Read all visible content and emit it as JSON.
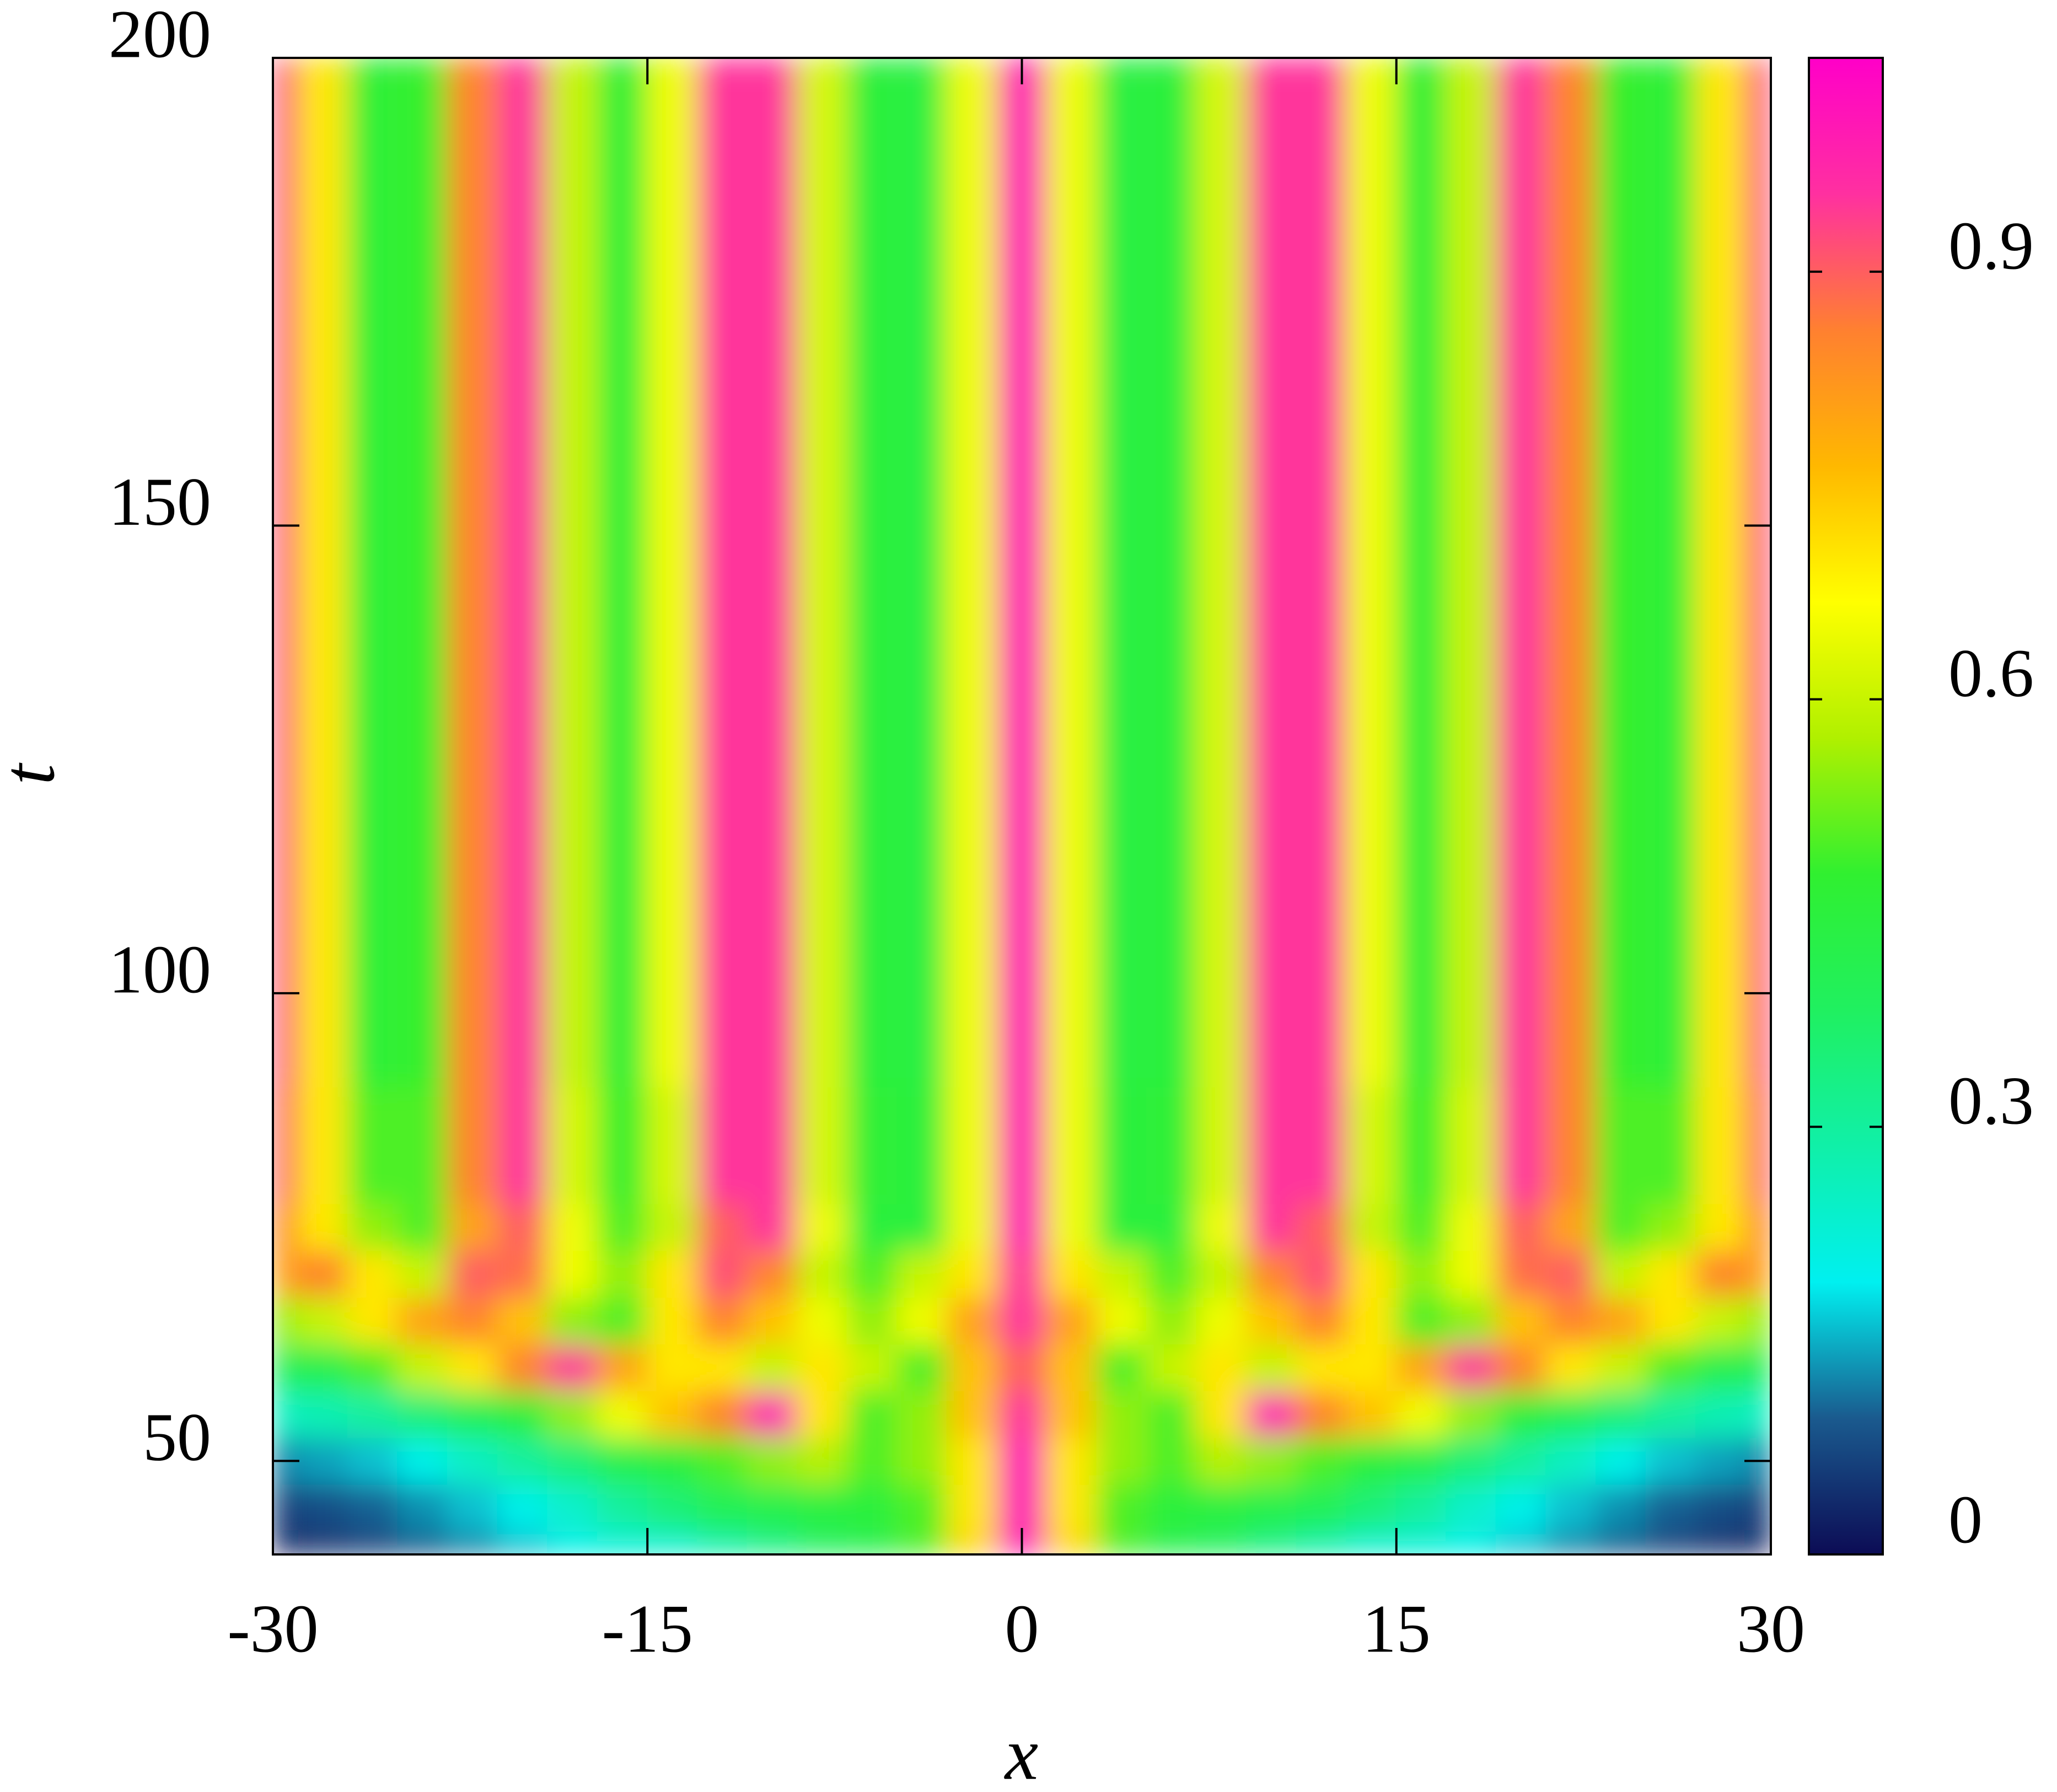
{
  "chart_data": {
    "type": "heatmap",
    "x_label": "x",
    "y_label": "t",
    "xlim": [
      -30,
      30
    ],
    "ylim": [
      40,
      200
    ],
    "xticks": [
      -30,
      -15,
      0,
      15,
      30
    ],
    "yticks": [
      50,
      100,
      150,
      200
    ],
    "zlim": [
      0,
      1.05
    ],
    "zticks": [
      0,
      0.3,
      0.6,
      0.9
    ],
    "colormap": [
      "#0c0c55",
      "#1a5a8e",
      "#00f0f0",
      "#10f0a8",
      "#20f060",
      "#30f030",
      "#b0f000",
      "#ffff00",
      "#ffb800",
      "#ff8030",
      "#ff30a0",
      "#ff00c8"
    ],
    "x": [
      -30,
      -28,
      -26,
      -24,
      -22,
      -20,
      -18,
      -16,
      -14,
      -12,
      -10,
      -8,
      -6,
      -4,
      -2,
      0,
      2,
      4,
      6,
      8,
      10,
      12,
      14,
      16,
      18,
      20,
      22,
      24,
      26,
      28,
      30
    ],
    "y": [
      40,
      45,
      50,
      55,
      60,
      65,
      70,
      75,
      80,
      100,
      150,
      200
    ],
    "z": [
      [
        0.02,
        0.04,
        0.06,
        0.09,
        0.12,
        0.16,
        0.2,
        0.22,
        0.23,
        0.28,
        0.33,
        0.38,
        0.42,
        0.5,
        0.72,
        1.0,
        0.72,
        0.5,
        0.42,
        0.38,
        0.33,
        0.28,
        0.23,
        0.22,
        0.2,
        0.16,
        0.12,
        0.09,
        0.06,
        0.04,
        0.02
      ],
      [
        0.06,
        0.08,
        0.1,
        0.13,
        0.16,
        0.2,
        0.24,
        0.3,
        0.35,
        0.4,
        0.42,
        0.44,
        0.45,
        0.5,
        0.7,
        1.0,
        0.7,
        0.5,
        0.45,
        0.44,
        0.42,
        0.4,
        0.35,
        0.3,
        0.24,
        0.2,
        0.16,
        0.13,
        0.1,
        0.08,
        0.06
      ],
      [
        0.12,
        0.14,
        0.16,
        0.2,
        0.25,
        0.3,
        0.35,
        0.42,
        0.45,
        0.5,
        0.55,
        0.58,
        0.5,
        0.55,
        0.7,
        1.0,
        0.7,
        0.55,
        0.5,
        0.58,
        0.55,
        0.5,
        0.45,
        0.42,
        0.35,
        0.3,
        0.25,
        0.2,
        0.16,
        0.14,
        0.12
      ],
      [
        0.25,
        0.27,
        0.3,
        0.35,
        0.4,
        0.45,
        0.55,
        0.65,
        0.75,
        0.85,
        1.0,
        0.7,
        0.5,
        0.55,
        0.75,
        0.95,
        0.75,
        0.55,
        0.5,
        0.7,
        1.0,
        0.85,
        0.75,
        0.65,
        0.55,
        0.45,
        0.4,
        0.35,
        0.3,
        0.27,
        0.25
      ],
      [
        0.4,
        0.42,
        0.5,
        0.6,
        0.7,
        0.85,
        0.95,
        0.8,
        0.7,
        0.7,
        0.6,
        0.7,
        0.6,
        0.5,
        0.75,
        0.9,
        0.75,
        0.5,
        0.6,
        0.7,
        0.6,
        0.7,
        0.7,
        0.8,
        0.95,
        0.85,
        0.7,
        0.6,
        0.5,
        0.42,
        0.4
      ],
      [
        0.55,
        0.6,
        0.7,
        0.8,
        0.85,
        0.75,
        0.55,
        0.5,
        0.7,
        0.85,
        0.75,
        0.65,
        0.55,
        0.65,
        0.8,
        0.95,
        0.8,
        0.65,
        0.55,
        0.65,
        0.75,
        0.85,
        0.7,
        0.5,
        0.55,
        0.75,
        0.85,
        0.8,
        0.7,
        0.6,
        0.55
      ],
      [
        0.8,
        0.85,
        0.7,
        0.6,
        0.9,
        0.88,
        0.65,
        0.55,
        0.7,
        0.92,
        0.85,
        0.6,
        0.5,
        0.6,
        0.7,
        0.95,
        0.7,
        0.6,
        0.5,
        0.6,
        0.85,
        0.92,
        0.7,
        0.55,
        0.65,
        0.88,
        0.9,
        0.6,
        0.7,
        0.85,
        0.8
      ],
      [
        0.85,
        0.7,
        0.55,
        0.5,
        0.8,
        0.9,
        0.65,
        0.5,
        0.6,
        0.9,
        0.95,
        0.65,
        0.45,
        0.45,
        0.65,
        1.0,
        0.65,
        0.45,
        0.45,
        0.65,
        0.95,
        0.9,
        0.6,
        0.5,
        0.65,
        0.9,
        0.8,
        0.5,
        0.55,
        0.7,
        0.85
      ],
      [
        0.9,
        0.7,
        0.5,
        0.5,
        0.85,
        0.95,
        0.62,
        0.48,
        0.62,
        0.95,
        0.95,
        0.62,
        0.46,
        0.45,
        0.65,
        1.0,
        0.65,
        0.45,
        0.46,
        0.62,
        0.95,
        0.95,
        0.62,
        0.48,
        0.62,
        0.95,
        0.85,
        0.5,
        0.5,
        0.7,
        0.9
      ],
      [
        0.92,
        0.7,
        0.46,
        0.48,
        0.85,
        0.95,
        0.6,
        0.46,
        0.65,
        0.95,
        0.95,
        0.62,
        0.45,
        0.44,
        0.65,
        1.0,
        0.65,
        0.44,
        0.45,
        0.62,
        0.95,
        0.95,
        0.65,
        0.46,
        0.6,
        0.95,
        0.85,
        0.48,
        0.46,
        0.7,
        0.92
      ],
      [
        0.92,
        0.7,
        0.46,
        0.48,
        0.85,
        0.95,
        0.6,
        0.46,
        0.65,
        0.95,
        0.95,
        0.62,
        0.45,
        0.44,
        0.65,
        1.0,
        0.65,
        0.44,
        0.45,
        0.62,
        0.95,
        0.95,
        0.65,
        0.46,
        0.6,
        0.95,
        0.85,
        0.48,
        0.46,
        0.7,
        0.92
      ],
      [
        0.92,
        0.7,
        0.46,
        0.48,
        0.85,
        0.95,
        0.6,
        0.46,
        0.65,
        0.95,
        0.95,
        0.62,
        0.45,
        0.44,
        0.65,
        1.0,
        0.65,
        0.44,
        0.45,
        0.62,
        0.95,
        0.95,
        0.65,
        0.46,
        0.6,
        0.95,
        0.85,
        0.48,
        0.46,
        0.7,
        0.92
      ]
    ]
  }
}
